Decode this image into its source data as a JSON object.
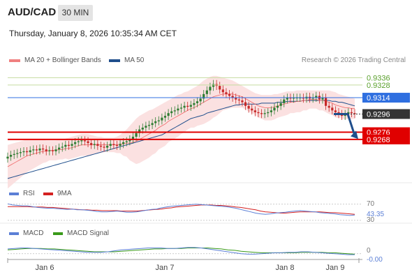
{
  "header": {
    "pair": "AUD/CAD",
    "timeframe": "30 MIN",
    "timestamp": "Thursday, January 8, 2026 10:35:34 AM CET"
  },
  "legend": {
    "bollinger": "MA 20 + Bollinger Bands",
    "ma50": "MA 50",
    "rsi": "RSI",
    "rsi_ma": "9MA",
    "macd": "MACD",
    "macd_signal": "MACD Signal"
  },
  "copyright": "Research © 2026 Trading Central",
  "colors": {
    "bull": "#2e7d32",
    "bear": "#c62828",
    "bollinger_band": "#fadcdc",
    "ma20": "#f06666",
    "ma50": "#1f4e8c",
    "resistance": "#c5dca0",
    "pivot": "#2f6fe0",
    "support": "#e00000",
    "current": "#333333",
    "forecast_arrow": "#1f4e8c",
    "rsi": "#5b7fd6",
    "rsi_ma": "#d42020",
    "macd": "#5b7fd6",
    "macd_signal": "#3a9a1a"
  },
  "chart_data": [
    {
      "type": "candlestick",
      "title": "AUD/CAD",
      "x_labels": [
        "Jan 6",
        "Jan 7",
        "Jan 8",
        "Jan 9"
      ],
      "ylim": [
        0.9228,
        0.9344
      ],
      "price_series": [
        0.9249,
        0.9251,
        0.9252,
        0.9253,
        0.9254,
        0.9255,
        0.9254,
        0.9256,
        0.9257,
        0.9256,
        0.9258,
        0.9257,
        0.9255,
        0.9256,
        0.9255,
        0.9257,
        0.9259,
        0.926,
        0.9262,
        0.9261,
        0.9263,
        0.9265,
        0.9266,
        0.9267,
        0.9266,
        0.9264,
        0.9262,
        0.9263,
        0.9261,
        0.926,
        0.9259,
        0.9261,
        0.9263,
        0.9262,
        0.9261,
        0.9263,
        0.9265,
        0.9266,
        0.9268,
        0.9271,
        0.9275,
        0.9279,
        0.9281,
        0.9283,
        0.9284,
        0.9286,
        0.9288,
        0.9289,
        0.9292,
        0.9294,
        0.9297,
        0.9299,
        0.93,
        0.9302,
        0.9303,
        0.9305,
        0.9304,
        0.9306,
        0.9308,
        0.931,
        0.9313,
        0.9318,
        0.9322,
        0.9326,
        0.9329,
        0.9327,
        0.9323,
        0.932,
        0.9318,
        0.9316,
        0.9314,
        0.9312,
        0.9311,
        0.9309,
        0.9305,
        0.9302,
        0.93,
        0.9298,
        0.9297,
        0.9296,
        0.9297,
        0.9298,
        0.93,
        0.9303,
        0.9305,
        0.9308,
        0.9312,
        0.9314,
        0.9313,
        0.9314,
        0.9314,
        0.9314,
        0.9313,
        0.9315,
        0.9313,
        0.9314,
        0.9316,
        0.9312,
        0.9314,
        0.9305,
        0.9303,
        0.93,
        0.9298,
        0.9296,
        0.9294,
        0.9296,
        0.9298,
        0.9297,
        0.9296
      ],
      "ma20": [
        0.9238,
        0.924,
        0.9242,
        0.9244,
        0.9246,
        0.9248,
        0.925,
        0.9251,
        0.9252,
        0.9253,
        0.9254,
        0.9255,
        0.9255,
        0.9256,
        0.9256,
        0.9256,
        0.9257,
        0.9257,
        0.9258,
        0.9258,
        0.9259,
        0.926,
        0.9261,
        0.9262,
        0.9262,
        0.9262,
        0.9262,
        0.9262,
        0.9262,
        0.9262,
        0.9262,
        0.9262,
        0.9262,
        0.9262,
        0.9262,
        0.9263,
        0.9263,
        0.9264,
        0.9264,
        0.9265,
        0.9266,
        0.9268,
        0.927,
        0.9272,
        0.9274,
        0.9276,
        0.9278,
        0.9281,
        0.9283,
        0.9285,
        0.9288,
        0.929,
        0.9292,
        0.9294,
        0.9296,
        0.9298,
        0.93,
        0.9302,
        0.9303,
        0.9305,
        0.9307,
        0.9309,
        0.9311,
        0.9313,
        0.9315,
        0.9316,
        0.9317,
        0.9318,
        0.9318,
        0.9318,
        0.9318,
        0.9317,
        0.9316,
        0.9315,
        0.9313,
        0.9311,
        0.9309,
        0.9307,
        0.9305,
        0.9304,
        0.9303,
        0.9303,
        0.9303,
        0.9304,
        0.9305,
        0.9306,
        0.9307,
        0.9308,
        0.9309,
        0.9309,
        0.931,
        0.931,
        0.9311,
        0.9311,
        0.9312,
        0.9312,
        0.9312,
        0.9311,
        0.9311,
        0.931,
        0.9309,
        0.9308,
        0.9306,
        0.9305,
        0.9304,
        0.9303,
        0.9303,
        0.9302,
        0.9302
      ],
      "bb_upper": [
        0.9262,
        0.9263,
        0.9264,
        0.9265,
        0.9266,
        0.9267,
        0.9268,
        0.9268,
        0.9268,
        0.9268,
        0.9268,
        0.9268,
        0.9267,
        0.9267,
        0.9267,
        0.9267,
        0.9268,
        0.9268,
        0.9269,
        0.927,
        0.9271,
        0.9272,
        0.9273,
        0.9274,
        0.9274,
        0.9274,
        0.9273,
        0.9272,
        0.9271,
        0.9271,
        0.927,
        0.927,
        0.927,
        0.927,
        0.9271,
        0.9273,
        0.9276,
        0.9279,
        0.9283,
        0.9287,
        0.9291,
        0.9294,
        0.9296,
        0.9298,
        0.93,
        0.9301,
        0.9303,
        0.9305,
        0.9307,
        0.9309,
        0.9311,
        0.9313,
        0.9315,
        0.9317,
        0.9318,
        0.932,
        0.9321,
        0.9323,
        0.9325,
        0.9327,
        0.933,
        0.9333,
        0.9335,
        0.9337,
        0.9338,
        0.9338,
        0.9337,
        0.9336,
        0.9335,
        0.9334,
        0.9333,
        0.9331,
        0.9329,
        0.9327,
        0.9325,
        0.9323,
        0.9321,
        0.9319,
        0.9318,
        0.9317,
        0.9317,
        0.9317,
        0.9317,
        0.9318,
        0.9318,
        0.9319,
        0.932,
        0.9321,
        0.9321,
        0.9321,
        0.9322,
        0.9322,
        0.9322,
        0.9322,
        0.9322,
        0.9322,
        0.9322,
        0.9322,
        0.9322,
        0.9322,
        0.9322,
        0.9321,
        0.932,
        0.9318,
        0.9317,
        0.9316,
        0.9315,
        0.9314,
        0.9313
      ],
      "bb_lower": [
        0.9214,
        0.9217,
        0.922,
        0.9223,
        0.9226,
        0.9229,
        0.9232,
        0.9234,
        0.9236,
        0.9238,
        0.924,
        0.9242,
        0.9243,
        0.9245,
        0.9245,
        0.9245,
        0.9246,
        0.9246,
        0.9247,
        0.9246,
        0.9247,
        0.9248,
        0.9249,
        0.925,
        0.925,
        0.925,
        0.9251,
        0.9252,
        0.9253,
        0.9253,
        0.9254,
        0.9254,
        0.9254,
        0.9254,
        0.9253,
        0.9253,
        0.925,
        0.9249,
        0.9245,
        0.9243,
        0.9241,
        0.9242,
        0.9244,
        0.9246,
        0.9248,
        0.9251,
        0.9253,
        0.9257,
        0.9259,
        0.9261,
        0.9265,
        0.9267,
        0.9269,
        0.9271,
        0.9274,
        0.9276,
        0.9279,
        0.9281,
        0.9281,
        0.9283,
        0.9284,
        0.9285,
        0.9287,
        0.9289,
        0.9292,
        0.9294,
        0.9297,
        0.93,
        0.9301,
        0.9302,
        0.9303,
        0.9303,
        0.9303,
        0.9303,
        0.9301,
        0.9299,
        0.9297,
        0.9295,
        0.9292,
        0.9291,
        0.9289,
        0.9289,
        0.9289,
        0.929,
        0.9292,
        0.9293,
        0.9294,
        0.9295,
        0.9297,
        0.9297,
        0.9298,
        0.9298,
        0.93,
        0.93,
        0.9302,
        0.9302,
        0.9302,
        0.93,
        0.93,
        0.9298,
        0.9296,
        0.9295,
        0.9292,
        0.9292,
        0.9291,
        0.929,
        0.9291,
        0.929,
        0.9291
      ],
      "ma50": [
        0.9225,
        0.9226,
        0.9227,
        0.9228,
        0.9229,
        0.923,
        0.9231,
        0.9232,
        0.9233,
        0.9234,
        0.9235,
        0.9236,
        0.9237,
        0.9238,
        0.9239,
        0.924,
        0.9241,
        0.9242,
        0.9243,
        0.9244,
        0.9245,
        0.9246,
        0.9247,
        0.9248,
        0.9249,
        0.925,
        0.9251,
        0.9252,
        0.9253,
        0.9254,
        0.9255,
        0.9256,
        0.9257,
        0.9258,
        0.9259,
        0.926,
        0.9261,
        0.9262,
        0.9263,
        0.9264,
        0.9265,
        0.9266,
        0.9267,
        0.9268,
        0.9269,
        0.927,
        0.9271,
        0.9272,
        0.9273,
        0.9275,
        0.9277,
        0.9279,
        0.9281,
        0.9283,
        0.9285,
        0.9287,
        0.9289,
        0.9291,
        0.9292,
        0.9293,
        0.9294,
        0.9295,
        0.9297,
        0.9298,
        0.9299,
        0.93,
        0.9301,
        0.9302,
        0.9303,
        0.9304,
        0.9305,
        0.9306,
        0.9306,
        0.9307,
        0.9307,
        0.9307,
        0.9307,
        0.9307,
        0.9307,
        0.9308,
        0.9308,
        0.9308,
        0.9308,
        0.9308,
        0.9309,
        0.9309,
        0.9309,
        0.931,
        0.931,
        0.931,
        0.931,
        0.931,
        0.9311,
        0.9311,
        0.9311,
        0.9311,
        0.9311,
        0.9311,
        0.9311,
        0.9311,
        0.9311,
        0.931,
        0.931,
        0.9309,
        0.9309,
        0.9308,
        0.9307,
        0.9306,
        0.9305
      ],
      "levels": [
        {
          "value": 0.9336,
          "label": "0.9336",
          "kind": "resistance"
        },
        {
          "value": 0.9328,
          "label": "0.9328",
          "kind": "resistance"
        },
        {
          "value": 0.9314,
          "label": "0.9314",
          "kind": "pivot"
        },
        {
          "value": 0.9296,
          "label": "0.9296",
          "kind": "current"
        },
        {
          "value": 0.9276,
          "label": "0.9276",
          "kind": "support"
        },
        {
          "value": 0.9268,
          "label": "0.9268",
          "kind": "support"
        }
      ],
      "forecast": {
        "from": 0.9296,
        "to": 0.927
      }
    },
    {
      "type": "line",
      "title": "RSI",
      "ylim": [
        28,
        80
      ],
      "level_labels": [
        "70",
        "43.35",
        "30"
      ],
      "level_values": [
        70,
        43.35,
        30
      ],
      "series": [
        {
          "name": "RSI",
          "values": [
            71,
            68,
            67,
            66,
            66,
            64,
            62,
            61,
            60,
            60,
            59,
            58,
            57,
            58,
            56,
            56,
            55,
            54,
            52,
            51,
            51,
            52,
            53,
            52,
            50,
            50,
            51,
            53,
            55,
            57,
            58,
            61,
            63,
            65,
            66,
            67,
            68,
            69,
            70,
            69,
            68,
            67,
            66,
            65,
            64,
            62,
            60,
            57,
            54,
            51,
            48,
            46,
            45,
            46,
            48,
            49,
            50,
            52,
            53,
            54,
            53,
            52,
            51,
            49,
            48,
            47,
            46,
            44,
            43,
            42,
            43
          ]
        },
        {
          "name": "9MA",
          "values": [
            64,
            64,
            64,
            64,
            64,
            63,
            63,
            63,
            62,
            62,
            61,
            60,
            59,
            58,
            57,
            56,
            56,
            55,
            55,
            54,
            54,
            54,
            54,
            53,
            53,
            53,
            53,
            54,
            55,
            56,
            57,
            58,
            60,
            61,
            63,
            64,
            65,
            66,
            67,
            68,
            68,
            68,
            67,
            67,
            66,
            65,
            63,
            62,
            60,
            58,
            56,
            53,
            51,
            50,
            49,
            48,
            48,
            49,
            50,
            51,
            51,
            51,
            51,
            51,
            50,
            49,
            49,
            48,
            47,
            46,
            45
          ]
        }
      ]
    },
    {
      "type": "line",
      "title": "MACD",
      "ylim": [
        -0.0012,
        0.002
      ],
      "level_labels": [
        "0",
        "-0.00"
      ],
      "series": [
        {
          "name": "MACD",
          "values": [
            0.001,
            0.0011,
            0.0012,
            0.0012,
            0.0011,
            0.001,
            0.0009,
            0.0008,
            0.0007,
            0.0006,
            0.0005,
            0.0004,
            0.0003,
            0.0003,
            0.0003,
            0.0004,
            0.0006,
            0.0008,
            0.0009,
            0.001,
            0.0011,
            0.0012,
            0.0012,
            0.0012,
            0.0011,
            0.0011,
            0.0012,
            0.0013,
            0.0013,
            0.0012,
            0.001,
            0.0008,
            0.0006,
            0.0004,
            0.0002,
            0.0,
            -0.0001,
            -0.0001,
            0.0,
            0.0001,
            0.0002,
            0.0002,
            0.0003,
            0.0003,
            0.0004,
            0.0004,
            0.0003,
            0.0002,
            0.0001,
            0.0,
            -0.0001,
            -0.0002,
            -0.0002
          ]
        },
        {
          "name": "MACD Signal",
          "values": [
            0.0008,
            0.0009,
            0.001,
            0.0011,
            0.0011,
            0.0011,
            0.001,
            0.001,
            0.0009,
            0.0008,
            0.0007,
            0.0006,
            0.0005,
            0.0004,
            0.0004,
            0.0004,
            0.0004,
            0.0005,
            0.0006,
            0.0007,
            0.0008,
            0.0009,
            0.001,
            0.001,
            0.0011,
            0.0011,
            0.0011,
            0.0012,
            0.0012,
            0.0012,
            0.0012,
            0.0011,
            0.001,
            0.0008,
            0.0007,
            0.0005,
            0.0004,
            0.0003,
            0.0002,
            0.0002,
            0.0002,
            0.0002,
            0.0002,
            0.0002,
            0.0003,
            0.0003,
            0.0003,
            0.0003,
            0.0002,
            0.0002,
            0.0001,
            0.0,
            -0.0001
          ]
        }
      ]
    }
  ]
}
